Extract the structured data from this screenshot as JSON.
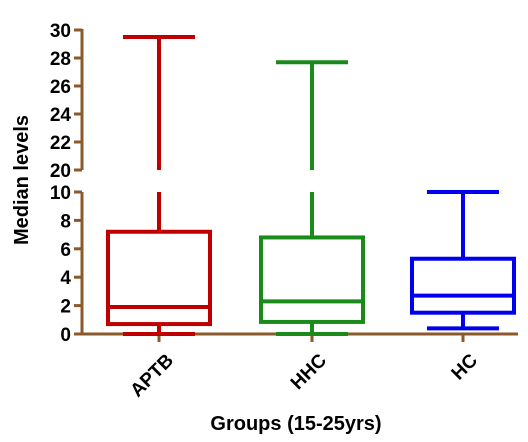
{
  "chart_data": {
    "type": "boxplot",
    "xlabel": "Groups (15-25yrs)",
    "ylabel": "Median levels",
    "axis_break": {
      "lower": [
        0,
        10
      ],
      "upper": [
        20,
        30
      ]
    },
    "lower_ticks": [
      0,
      2,
      4,
      6,
      8,
      10
    ],
    "upper_ticks": [
      20,
      22,
      24,
      26,
      28,
      30
    ],
    "categories": [
      "APTB",
      "HHC",
      "HC"
    ],
    "series": [
      {
        "category": "APTB",
        "color": "#c00000",
        "min": 0.0,
        "q1": 0.7,
        "median": 1.9,
        "q3": 7.2,
        "max": 29.5
      },
      {
        "category": "HHC",
        "color": "#1a8a1a",
        "min": 0.0,
        "q1": 0.85,
        "median": 2.3,
        "q3": 6.8,
        "max": 27.7
      },
      {
        "category": "HC",
        "color": "#0000ee",
        "min": 0.4,
        "q1": 1.5,
        "median": 2.7,
        "q3": 5.3,
        "max": 10.0
      }
    ]
  }
}
